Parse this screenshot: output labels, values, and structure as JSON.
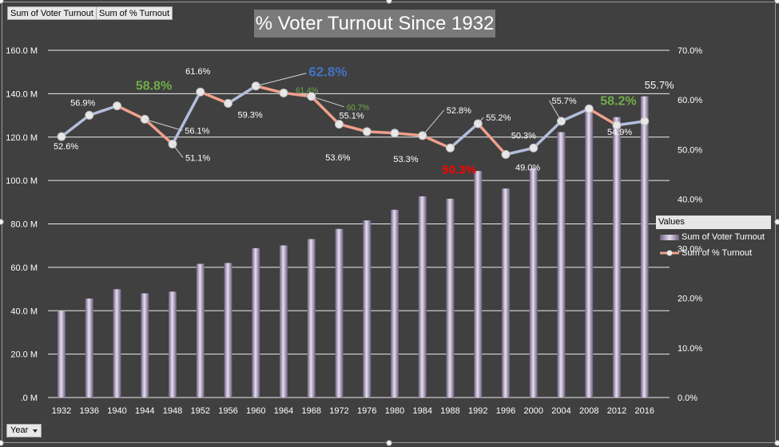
{
  "field_buttons": {
    "voter_turnout_label": "Sum of Voter Turnout",
    "pct_turnout_label": "Sum of % Turnout"
  },
  "axis_button": {
    "label": "Year"
  },
  "legend": {
    "title": "Values",
    "items": [
      "Sum of Voter Turnout",
      "Sum of % Turnout"
    ]
  },
  "colors": {
    "background": "#404040",
    "bar": "#b9a9c9",
    "line_up": "#b3bedc",
    "line_down": "#f0a08c",
    "marker": "#e8e8e8",
    "label_default": "#ffffff",
    "label_green": "#70ad47",
    "label_blue": "#4472c4",
    "label_red": "#ff0000"
  },
  "chart_data": {
    "type": "bar+line",
    "title": "% Voter Turnout Since 1932",
    "categories": [
      "1932",
      "1936",
      "1940",
      "1944",
      "1948",
      "1952",
      "1956",
      "1960",
      "1964",
      "1968",
      "1972",
      "1976",
      "1980",
      "1984",
      "1988",
      "1992",
      "1996",
      "2000",
      "2004",
      "2008",
      "2012",
      "2016"
    ],
    "series": [
      {
        "name": "Sum of Voter Turnout",
        "type": "bar",
        "axis": "left",
        "values": [
          39.8,
          45.6,
          49.9,
          48.0,
          48.8,
          61.6,
          62.0,
          68.8,
          70.1,
          73.0,
          77.7,
          81.6,
          86.5,
          92.7,
          91.6,
          104.4,
          96.3,
          105.6,
          122.3,
          131.5,
          129.2,
          138.8
        ]
      },
      {
        "name": "Sum of % Turnout",
        "type": "line",
        "axis": "right",
        "values": [
          52.6,
          56.9,
          58.8,
          56.1,
          51.1,
          61.6,
          59.3,
          62.8,
          61.4,
          60.7,
          55.1,
          53.6,
          53.3,
          52.8,
          50.3,
          55.2,
          49.0,
          50.3,
          55.7,
          58.2,
          54.9,
          55.7
        ]
      }
    ],
    "y_left": {
      "min": 0,
      "max": 160,
      "ticks": [
        ".0 M",
        "20.0 M",
        "40.0 M",
        "60.0 M",
        "80.0 M",
        "100.0 M",
        "120.0 M",
        "140.0 M",
        "160.0 M"
      ]
    },
    "y_right": {
      "min": 0,
      "max": 70,
      "ticks": [
        "0.0%",
        "10.0%",
        "20.0%",
        "30.0%",
        "40.0%",
        "50.0%",
        "60.0%",
        "70.0%"
      ]
    },
    "data_labels": [
      "52.6%",
      "56.9%",
      "58.8%",
      "56.1%",
      "51.1%",
      "61.6%",
      "59.3%",
      "62.8%",
      "61.4%",
      "60.7%",
      "55.1%",
      "53.6%",
      "53.3%",
      "52.8%",
      "50.3%",
      "55.2%",
      "49.0%",
      "50.3%",
      "55.7%",
      "58.2%",
      "54.9%",
      "55.7%"
    ],
    "grid": true,
    "legend_position": "right"
  }
}
